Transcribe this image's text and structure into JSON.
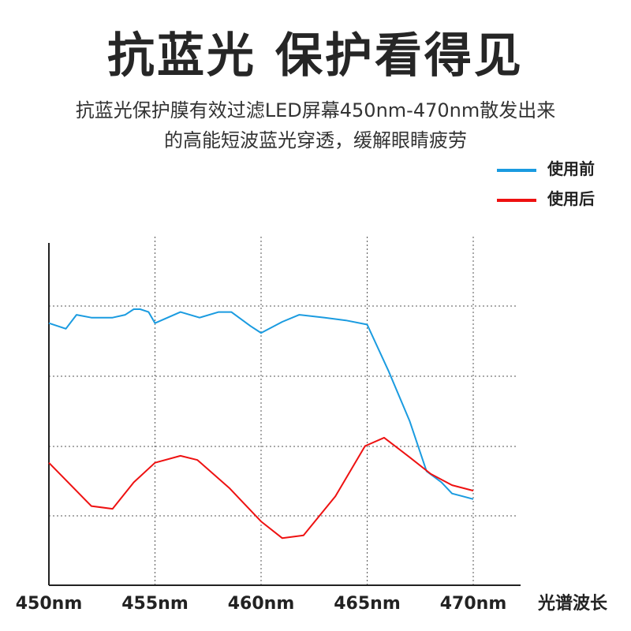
{
  "header": {
    "title": "抗蓝光 保护看得见",
    "desc_line1": "抗蓝光保护膜有效过滤LED屏幕450nm-470nm散发出来",
    "desc_line2": "的高能短波蓝光穿透，缓解眼睛疲劳"
  },
  "chart_data": {
    "type": "line",
    "xlabel": "光谱波长",
    "x_ticks": [
      "450nm",
      "455nm",
      "460nm",
      "465nm",
      "470nm"
    ],
    "xlim": [
      450,
      470
    ],
    "ylim": [
      0,
      100
    ],
    "grid": "dotted",
    "legend_position": "top-right",
    "series": [
      {
        "name": "使用前",
        "color": "#1a9be0",
        "x": [
          450,
          450.8,
          451.3,
          452,
          453,
          453.6,
          454,
          454.3,
          454.7,
          455,
          456.2,
          457.1,
          458,
          458.6,
          459.5,
          460,
          461,
          461.8,
          463,
          464,
          465,
          466,
          467,
          467.8,
          468.5,
          469,
          469.5,
          470
        ],
        "y": [
          69,
          67,
          72,
          71,
          71,
          72,
          74,
          74,
          73,
          69,
          73,
          71,
          73,
          73,
          68,
          65.5,
          69.5,
          72,
          71,
          70,
          68.5,
          52,
          34,
          16,
          12,
          8,
          7,
          6
        ]
      },
      {
        "name": "使用后",
        "color": "#ee1111",
        "x": [
          450,
          452,
          453,
          454,
          455,
          456.2,
          457,
          458.5,
          460,
          461,
          462,
          463.5,
          464.9,
          465.8,
          467,
          468,
          469,
          470
        ],
        "y": [
          19,
          3.5,
          2.5,
          12,
          19,
          21.5,
          20,
          10,
          -2,
          -8,
          -7,
          7,
          25,
          28,
          21,
          15,
          11,
          9
        ]
      }
    ]
  }
}
